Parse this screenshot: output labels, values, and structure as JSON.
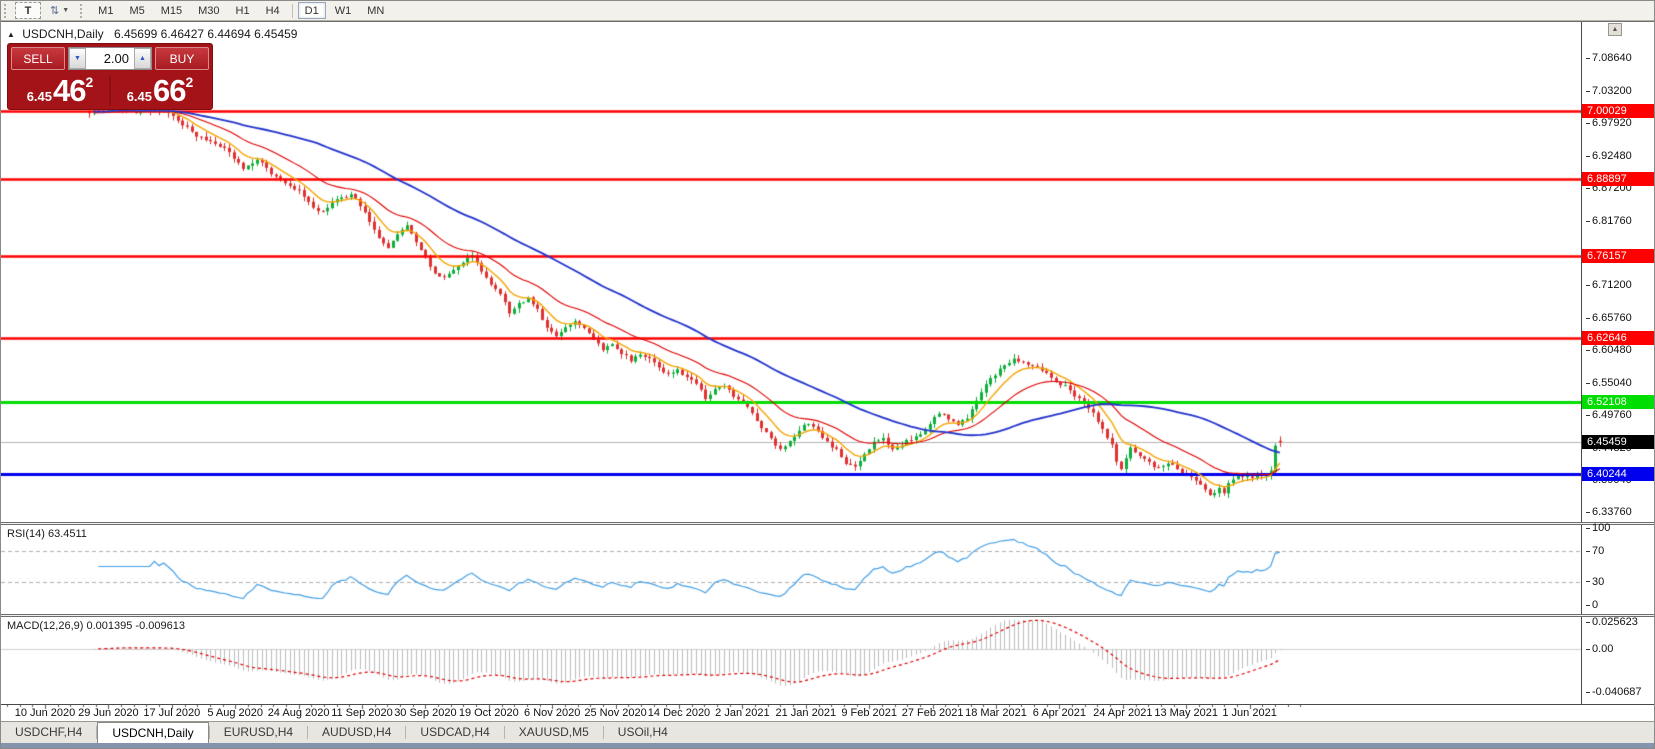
{
  "toolbar": {
    "text_tool_label": "T",
    "timeframes": [
      "M1",
      "M5",
      "M15",
      "M30",
      "H1",
      "H4",
      "D1",
      "W1",
      "MN"
    ],
    "active_timeframe": "D1"
  },
  "chart": {
    "title_symbol": "USDCNH,Daily",
    "title_ohlc": "6.45699 6.46427 6.44694 6.45459",
    "scroll_up_glyph": "▲"
  },
  "trade_panel": {
    "sell_label": "SELL",
    "buy_label": "BUY",
    "volume": "2.00",
    "sell_price_small": "6.45",
    "sell_price_big": "46",
    "sell_price_sup": "2",
    "buy_price_small": "6.45",
    "buy_price_big": "66",
    "buy_price_sup": "2"
  },
  "indicators": {
    "rsi_label": "RSI(14) 63.4511",
    "macd_label": "MACD(12,26,9) 0.001395 -0.009613",
    "rsi_axis": [
      {
        "v": 100,
        "label": "100"
      },
      {
        "v": 70,
        "label": "70"
      },
      {
        "v": 30,
        "label": "30"
      },
      {
        "v": 0,
        "label": "0"
      }
    ],
    "macd_axis": [
      {
        "v": 0.025623,
        "label": "0.025623"
      },
      {
        "v": 0,
        "label": "0.00"
      },
      {
        "v": -0.040687,
        "label": "-0.040687"
      }
    ]
  },
  "tabs": {
    "items": [
      "USDCHF,H4",
      "USDCNH,Daily",
      "EURUSD,H4",
      "AUDUSD,H4",
      "USDCAD,H4",
      "XAUUSD,M5",
      "USOil,H4"
    ],
    "active": "USDCNH,Daily"
  },
  "chart_data": {
    "type": "candlestick",
    "symbol": "USDCNH",
    "period": "Daily",
    "last_ohlc": {
      "open": 6.45699,
      "high": 6.46427,
      "low": 6.44694,
      "close": 6.45459
    },
    "view_price_range": [
      6.3376,
      7.0864
    ],
    "price_ticks": [
      "7.08640",
      "7.03200",
      "6.97920",
      "6.92480",
      "6.87200",
      "6.81760",
      "6.71200",
      "6.65760",
      "6.60480",
      "6.55040",
      "6.49760",
      "6.44320",
      "6.39040",
      "6.33760"
    ],
    "x_dates": [
      "10 Jun 2020",
      "29 Jun 2020",
      "17 Jul 2020",
      "5 Aug 2020",
      "24 Aug 2020",
      "11 Sep 2020",
      "30 Sep 2020",
      "19 Oct 2020",
      "6 Nov 2020",
      "25 Nov 2020",
      "14 Dec 2020",
      "2 Jan 2021",
      "21 Jan 2021",
      "9 Feb 2021",
      "27 Feb 2021",
      "18 Mar 2021",
      "6 Apr 2021",
      "24 Apr 2021",
      "13 May 2021",
      "1 Jun 2021"
    ],
    "hlines": [
      {
        "price": 7.00029,
        "label": "7.00029",
        "color": "#ff0000",
        "width": 2.5
      },
      {
        "price": 6.88897,
        "label": "6.88897",
        "color": "#ff0000",
        "width": 2.5
      },
      {
        "price": 6.76157,
        "label": "6.76157",
        "color": "#ff0000",
        "width": 2.5
      },
      {
        "price": 6.62646,
        "label": "6.62646",
        "color": "#ff0000",
        "width": 2.5
      },
      {
        "price": 6.52108,
        "label": "6.52108",
        "color": "#00dd00",
        "width": 3
      },
      {
        "price": 6.40244,
        "label": "6.40244",
        "color": "#0000ee",
        "width": 3
      }
    ],
    "current_price": {
      "value": 6.45459,
      "label": "6.45459",
      "line_color": "#b4b4b4",
      "chip_bg": "#000000"
    },
    "candles": {
      "count": 256,
      "seed": 7,
      "bull_color": "#0faf3c",
      "bear_color": "#e03232",
      "anchors": [
        [
          0,
          7.0
        ],
        [
          6,
          7.004
        ],
        [
          10,
          6.998
        ],
        [
          14,
          7.003
        ],
        [
          17,
          6.997
        ],
        [
          20,
          6.978
        ],
        [
          23,
          6.96
        ],
        [
          26,
          6.948
        ],
        [
          29,
          6.938
        ],
        [
          31,
          6.922
        ],
        [
          33,
          6.905
        ],
        [
          36,
          6.923
        ],
        [
          39,
          6.897
        ],
        [
          42,
          6.879
        ],
        [
          45,
          6.868
        ],
        [
          48,
          6.842
        ],
        [
          50,
          6.832
        ],
        [
          53,
          6.855
        ],
        [
          56,
          6.862
        ],
        [
          58,
          6.845
        ],
        [
          60,
          6.818
        ],
        [
          62,
          6.794
        ],
        [
          64,
          6.776
        ],
        [
          66,
          6.798
        ],
        [
          68,
          6.812
        ],
        [
          70,
          6.783
        ],
        [
          72,
          6.758
        ],
        [
          74,
          6.735
        ],
        [
          76,
          6.724
        ],
        [
          78,
          6.738
        ],
        [
          80,
          6.752
        ],
        [
          82,
          6.762
        ],
        [
          84,
          6.737
        ],
        [
          86,
          6.713
        ],
        [
          88,
          6.698
        ],
        [
          90,
          6.668
        ],
        [
          92,
          6.682
        ],
        [
          94,
          6.692
        ],
        [
          96,
          6.672
        ],
        [
          98,
          6.643
        ],
        [
          100,
          6.628
        ],
        [
          102,
          6.642
        ],
        [
          104,
          6.657
        ],
        [
          106,
          6.642
        ],
        [
          108,
          6.622
        ],
        [
          110,
          6.607
        ],
        [
          112,
          6.617
        ],
        [
          114,
          6.601
        ],
        [
          116,
          6.591
        ],
        [
          118,
          6.602
        ],
        [
          120,
          6.591
        ],
        [
          122,
          6.576
        ],
        [
          124,
          6.566
        ],
        [
          126,
          6.576
        ],
        [
          128,
          6.561
        ],
        [
          130,
          6.551
        ],
        [
          132,
          6.527
        ],
        [
          134,
          6.541
        ],
        [
          136,
          6.546
        ],
        [
          138,
          6.531
        ],
        [
          140,
          6.521
        ],
        [
          142,
          6.501
        ],
        [
          144,
          6.477
        ],
        [
          146,
          6.461
        ],
        [
          148,
          6.441
        ],
        [
          150,
          6.456
        ],
        [
          152,
          6.476
        ],
        [
          154,
          6.486
        ],
        [
          156,
          6.471
        ],
        [
          158,
          6.456
        ],
        [
          160,
          6.441
        ],
        [
          162,
          6.421
        ],
        [
          164,
          6.412
        ],
        [
          166,
          6.436
        ],
        [
          168,
          6.456
        ],
        [
          170,
          6.461
        ],
        [
          172,
          6.446
        ],
        [
          174,
          6.451
        ],
        [
          176,
          6.461
        ],
        [
          178,
          6.468
        ],
        [
          180,
          6.486
        ],
        [
          182,
          6.502
        ],
        [
          184,
          6.494
        ],
        [
          186,
          6.486
        ],
        [
          188,
          6.494
        ],
        [
          190,
          6.521
        ],
        [
          192,
          6.551
        ],
        [
          194,
          6.566
        ],
        [
          196,
          6.581
        ],
        [
          198,
          6.591
        ],
        [
          200,
          6.586
        ],
        [
          203,
          6.576
        ],
        [
          206,
          6.561
        ],
        [
          209,
          6.546
        ],
        [
          212,
          6.526
        ],
        [
          215,
          6.501
        ],
        [
          217,
          6.476
        ],
        [
          219,
          6.451
        ],
        [
          220,
          6.421
        ],
        [
          221,
          6.408
        ],
        [
          222,
          6.426
        ],
        [
          223,
          6.446
        ],
        [
          224,
          6.441
        ],
        [
          225,
          6.433
        ],
        [
          227,
          6.421
        ],
        [
          229,
          6.411
        ],
        [
          231,
          6.419
        ],
        [
          233,
          6.411
        ],
        [
          235,
          6.401
        ],
        [
          237,
          6.393
        ],
        [
          238,
          6.386
        ],
        [
          239,
          6.376
        ],
        [
          240,
          6.369
        ],
        [
          241,
          6.373
        ],
        [
          242,
          6.379
        ],
        [
          243,
          6.371
        ],
        [
          244,
          6.386
        ],
        [
          245,
          6.393
        ],
        [
          246,
          6.399
        ],
        [
          247,
          6.395
        ],
        [
          248,
          6.401
        ],
        [
          249,
          6.398
        ],
        [
          250,
          6.402
        ],
        [
          251,
          6.398
        ],
        [
          252,
          6.401
        ],
        [
          253,
          6.408
        ],
        [
          254,
          6.449
        ],
        [
          255,
          6.4546
        ]
      ]
    },
    "moving_averages": [
      {
        "type": "ema",
        "period": 8,
        "color": "#f5a500",
        "width": 1.4
      },
      {
        "type": "ema",
        "period": 21,
        "color": "#e00000",
        "width": 1.1
      },
      {
        "type": "sma",
        "period": 50,
        "color": "#2233cc",
        "width": 1.8
      }
    ],
    "rsi": {
      "period": 14,
      "levels": [
        70,
        30
      ],
      "color": "#45a0e6",
      "last_value": 63.4511
    },
    "macd": {
      "fast": 12,
      "slow": 26,
      "signal": 9,
      "main_last": 0.001395,
      "signal_last": -0.009613,
      "hist_color": "#bdbdbd",
      "signal_color": "#e00000"
    }
  }
}
